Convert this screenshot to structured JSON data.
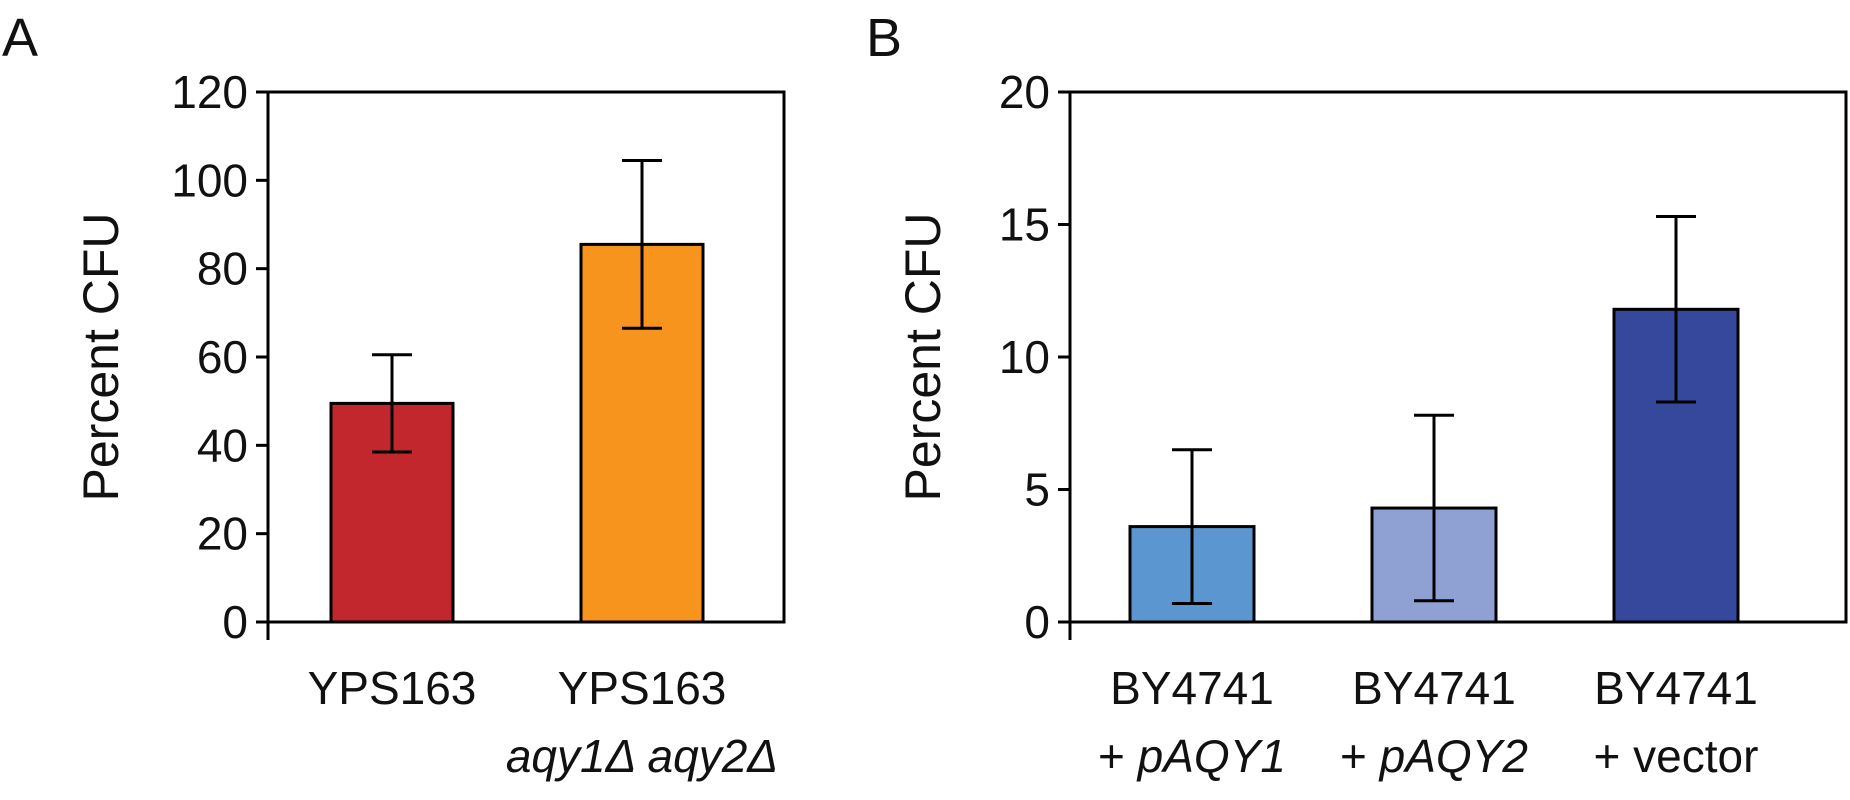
{
  "chart_data": [
    {
      "type": "bar",
      "panel_label": "A",
      "ylabel": "Percent CFU",
      "ylim": [
        0,
        120
      ],
      "yticks": [
        0,
        20,
        40,
        60,
        80,
        100,
        120
      ],
      "grid": false,
      "categories": [
        {
          "lines": [
            {
              "runs": [
                {
                  "text": "YPS163",
                  "italic": false
                }
              ]
            }
          ]
        },
        {
          "lines": [
            {
              "runs": [
                {
                  "text": "YPS163",
                  "italic": false
                }
              ]
            },
            {
              "runs": [
                {
                  "text": "aqy1Δ aqy2Δ",
                  "italic": true
                }
              ]
            }
          ]
        }
      ],
      "values": [
        49.5,
        85.5
      ],
      "errors": [
        11,
        19
      ],
      "colors": [
        "#c1272d",
        "#f7941d"
      ]
    },
    {
      "type": "bar",
      "panel_label": "B",
      "ylabel": "Percent CFU",
      "ylim": [
        0,
        20
      ],
      "yticks": [
        0,
        5,
        10,
        15,
        20
      ],
      "grid": false,
      "categories": [
        {
          "lines": [
            {
              "runs": [
                {
                  "text": "BY4741",
                  "italic": false
                }
              ]
            },
            {
              "runs": [
                {
                  "text": "+ ",
                  "italic": false
                },
                {
                  "text": "pAQY1",
                  "italic": true
                }
              ]
            }
          ]
        },
        {
          "lines": [
            {
              "runs": [
                {
                  "text": "BY4741",
                  "italic": false
                }
              ]
            },
            {
              "runs": [
                {
                  "text": "+ ",
                  "italic": false
                },
                {
                  "text": "pAQY2",
                  "italic": true
                }
              ]
            }
          ]
        },
        {
          "lines": [
            {
              "runs": [
                {
                  "text": "BY4741",
                  "italic": false
                }
              ]
            },
            {
              "runs": [
                {
                  "text": "+ vector",
                  "italic": false
                }
              ]
            }
          ]
        }
      ],
      "values": [
        3.6,
        4.3,
        11.8
      ],
      "errors": [
        2.9,
        3.5,
        3.5
      ],
      "colors": [
        "#5b96d1",
        "#8fa0d2",
        "#35489c"
      ]
    }
  ]
}
